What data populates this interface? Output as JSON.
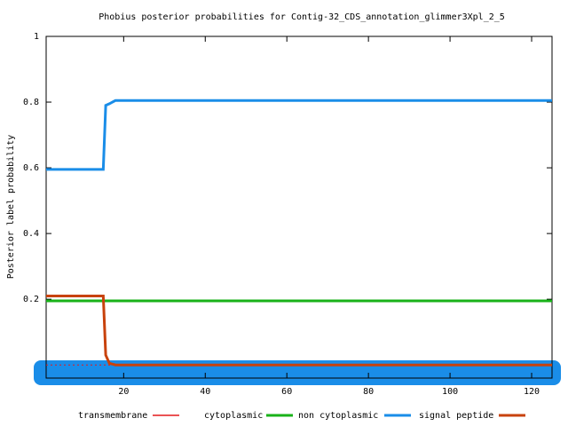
{
  "chart_data": {
    "type": "line",
    "title": "Phobius posterior probabilities for Contig-32_CDS_annotation_glimmer3Xpl_2_5",
    "y_label": "Posterior label probability",
    "x": [
      1,
      15,
      15.6,
      16.5,
      18,
      125
    ],
    "series": [
      {
        "name": "transmembrane",
        "color": "#e41a1c",
        "dashed": true,
        "values": [
          0,
          0,
          0,
          0,
          0,
          0
        ]
      },
      {
        "name": "cytoplasmic",
        "color": "#19b219",
        "values": [
          0.195,
          0.195,
          0.195,
          0.195,
          0.195,
          0.195
        ]
      },
      {
        "name": "non cytoplasmic",
        "color": "#1a8de8",
        "values": [
          0.595,
          0.595,
          0.79,
          0.795,
          0.805,
          0.805
        ]
      },
      {
        "name": "signal peptide",
        "color": "#c8420c",
        "values": [
          0.21,
          0.21,
          0.03,
          0.005,
          0,
          0
        ]
      }
    ],
    "xlim": [
      1,
      125
    ],
    "xticks": [
      20,
      40,
      60,
      80,
      100,
      120
    ],
    "ylim": [
      -0.04,
      1
    ],
    "yticks": [
      0.2,
      0.4,
      0.6,
      0.8,
      1
    ]
  }
}
